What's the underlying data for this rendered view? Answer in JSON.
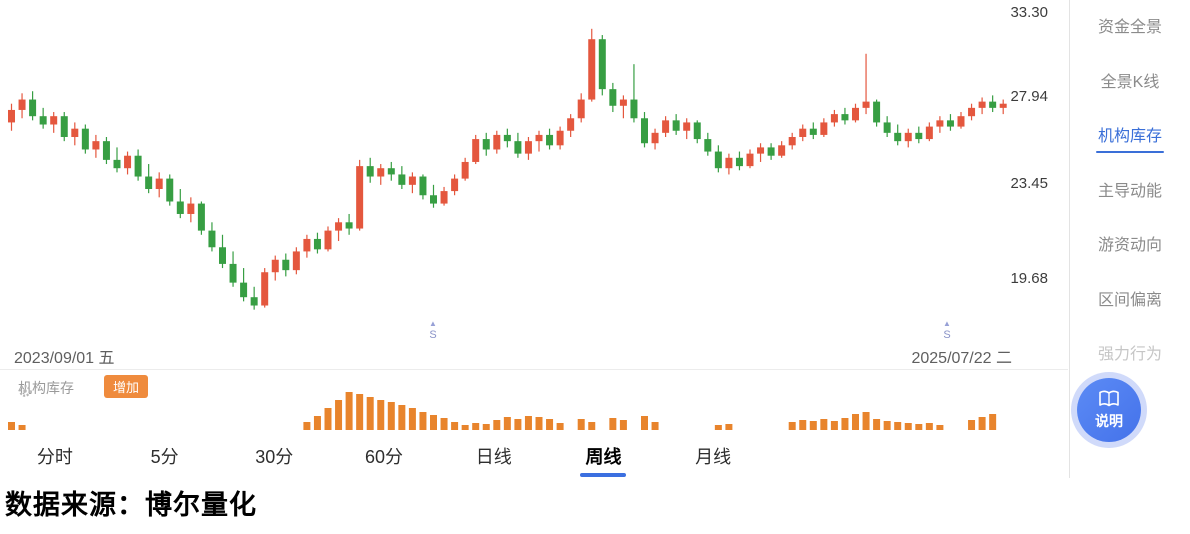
{
  "chart": {
    "y_axis_labels": [
      "33.30",
      "27.94",
      "23.45",
      "19.68"
    ],
    "date_start": "2023/09/01 五",
    "date_end": "2025/07/22 二",
    "markers": [
      {
        "label": "S",
        "x": 433
      },
      {
        "label": "S",
        "x": 947
      }
    ],
    "colors": {
      "up": "#e4573e",
      "down": "#379e43",
      "volume": "#e8842c",
      "accent": "#3b6fe0",
      "active_menu": "#3a6fd8"
    }
  },
  "chart_data": {
    "type": "candlestick",
    "timeframe": "周线",
    "y_range": [
      18.5,
      33.4
    ],
    "ohlc_note": "weekly candles [open,high,low,close]",
    "candles": [
      [
        27.9,
        28.8,
        27.5,
        28.5
      ],
      [
        28.5,
        29.3,
        28.1,
        29.0
      ],
      [
        29.0,
        29.4,
        28.0,
        28.2
      ],
      [
        28.2,
        28.6,
        27.6,
        27.8
      ],
      [
        27.8,
        28.4,
        27.4,
        28.2
      ],
      [
        28.2,
        28.4,
        27.0,
        27.2
      ],
      [
        27.2,
        27.9,
        26.8,
        27.6
      ],
      [
        27.6,
        27.8,
        26.4,
        26.6
      ],
      [
        26.6,
        27.3,
        26.2,
        27.0
      ],
      [
        27.0,
        27.2,
        25.9,
        26.1
      ],
      [
        26.1,
        26.7,
        25.5,
        25.7
      ],
      [
        25.7,
        26.5,
        25.4,
        26.3
      ],
      [
        26.3,
        26.6,
        25.1,
        25.3
      ],
      [
        25.3,
        25.9,
        24.5,
        24.7
      ],
      [
        24.7,
        25.5,
        24.3,
        25.2
      ],
      [
        25.2,
        25.4,
        23.9,
        24.1
      ],
      [
        24.1,
        24.7,
        23.3,
        23.5
      ],
      [
        23.5,
        24.3,
        23.1,
        24.0
      ],
      [
        24.0,
        24.1,
        22.5,
        22.7
      ],
      [
        22.7,
        23.1,
        21.7,
        21.9
      ],
      [
        21.9,
        22.5,
        20.9,
        21.1
      ],
      [
        21.1,
        21.7,
        20.0,
        20.2
      ],
      [
        20.2,
        20.9,
        19.3,
        19.5
      ],
      [
        19.5,
        20.0,
        18.9,
        19.1
      ],
      [
        19.1,
        20.9,
        19.0,
        20.7
      ],
      [
        20.7,
        21.5,
        20.3,
        21.3
      ],
      [
        21.3,
        21.6,
        20.5,
        20.8
      ],
      [
        20.8,
        21.9,
        20.6,
        21.7
      ],
      [
        21.7,
        22.5,
        21.4,
        22.3
      ],
      [
        22.3,
        22.6,
        21.6,
        21.8
      ],
      [
        21.8,
        22.9,
        21.7,
        22.7
      ],
      [
        22.7,
        23.3,
        22.2,
        23.1
      ],
      [
        23.1,
        23.5,
        22.5,
        22.8
      ],
      [
        22.8,
        26.1,
        22.7,
        25.8
      ],
      [
        25.8,
        26.2,
        25.0,
        25.3
      ],
      [
        25.3,
        25.9,
        24.9,
        25.7
      ],
      [
        25.7,
        26.0,
        25.1,
        25.4
      ],
      [
        25.4,
        25.8,
        24.7,
        24.9
      ],
      [
        24.9,
        25.5,
        24.5,
        25.3
      ],
      [
        25.3,
        25.4,
        24.2,
        24.4
      ],
      [
        24.4,
        24.9,
        23.8,
        24.0
      ],
      [
        24.0,
        24.8,
        23.9,
        24.6
      ],
      [
        24.6,
        25.4,
        24.4,
        25.2
      ],
      [
        25.2,
        26.2,
        25.1,
        26.0
      ],
      [
        26.0,
        27.3,
        25.9,
        27.1
      ],
      [
        27.1,
        27.4,
        26.3,
        26.6
      ],
      [
        26.6,
        27.5,
        26.4,
        27.3
      ],
      [
        27.3,
        27.6,
        26.7,
        27.0
      ],
      [
        27.0,
        27.4,
        26.2,
        26.4
      ],
      [
        26.4,
        27.2,
        26.1,
        27.0
      ],
      [
        27.0,
        27.5,
        26.5,
        27.3
      ],
      [
        27.3,
        27.6,
        26.6,
        26.8
      ],
      [
        26.8,
        27.7,
        26.6,
        27.5
      ],
      [
        27.5,
        28.3,
        27.2,
        28.1
      ],
      [
        28.1,
        29.3,
        27.9,
        29.0
      ],
      [
        29.0,
        32.4,
        28.9,
        31.9
      ],
      [
        31.9,
        32.1,
        29.2,
        29.5
      ],
      [
        29.5,
        29.8,
        28.4,
        28.7
      ],
      [
        28.7,
        29.2,
        28.1,
        29.0
      ],
      [
        29.0,
        30.7,
        27.9,
        28.1
      ],
      [
        28.1,
        28.4,
        26.7,
        26.9
      ],
      [
        26.9,
        27.6,
        26.6,
        27.4
      ],
      [
        27.4,
        28.2,
        27.2,
        28.0
      ],
      [
        28.0,
        28.3,
        27.3,
        27.5
      ],
      [
        27.5,
        28.1,
        27.1,
        27.9
      ],
      [
        27.9,
        28.0,
        26.9,
        27.1
      ],
      [
        27.1,
        27.4,
        26.3,
        26.5
      ],
      [
        26.5,
        26.8,
        25.5,
        25.7
      ],
      [
        25.7,
        26.4,
        25.4,
        26.2
      ],
      [
        26.2,
        26.5,
        25.6,
        25.8
      ],
      [
        25.8,
        26.6,
        25.7,
        26.4
      ],
      [
        26.4,
        26.9,
        26.0,
        26.7
      ],
      [
        26.7,
        26.9,
        26.1,
        26.3
      ],
      [
        26.3,
        27.0,
        26.2,
        26.8
      ],
      [
        26.8,
        27.4,
        26.6,
        27.2
      ],
      [
        27.2,
        27.8,
        27.0,
        27.6
      ],
      [
        27.6,
        27.9,
        27.1,
        27.3
      ],
      [
        27.3,
        28.1,
        27.2,
        27.9
      ],
      [
        27.9,
        28.5,
        27.7,
        28.3
      ],
      [
        28.3,
        28.6,
        27.8,
        28.0
      ],
      [
        28.0,
        28.8,
        27.9,
        28.6
      ],
      [
        28.6,
        31.2,
        28.3,
        28.9
      ],
      [
        28.9,
        29.0,
        27.7,
        27.9
      ],
      [
        27.9,
        28.2,
        27.2,
        27.4
      ],
      [
        27.4,
        27.8,
        26.8,
        27.0
      ],
      [
        27.0,
        27.6,
        26.7,
        27.4
      ],
      [
        27.4,
        27.7,
        26.9,
        27.1
      ],
      [
        27.1,
        27.9,
        27.0,
        27.7
      ],
      [
        27.7,
        28.2,
        27.4,
        28.0
      ],
      [
        28.0,
        28.3,
        27.5,
        27.7
      ],
      [
        27.7,
        28.4,
        27.6,
        28.2
      ],
      [
        28.2,
        28.8,
        28.0,
        28.6
      ],
      [
        28.6,
        29.1,
        28.3,
        28.9
      ],
      [
        28.9,
        29.2,
        28.4,
        28.6
      ],
      [
        28.6,
        29.0,
        28.3,
        28.8
      ]
    ],
    "volume_relative": [
      8,
      5,
      0,
      0,
      0,
      0,
      0,
      0,
      0,
      0,
      0,
      0,
      0,
      0,
      0,
      0,
      0,
      0,
      0,
      0,
      0,
      0,
      0,
      0,
      0,
      0,
      0,
      0,
      8,
      14,
      22,
      30,
      38,
      36,
      33,
      30,
      28,
      25,
      22,
      18,
      15,
      12,
      8,
      5,
      7,
      6,
      10,
      13,
      11,
      14,
      13,
      11,
      7,
      0,
      11,
      8,
      0,
      12,
      10,
      0,
      14,
      8,
      0,
      0,
      0,
      0,
      0,
      5,
      6,
      0,
      0,
      0,
      0,
      0,
      8,
      10,
      9,
      11,
      9,
      12,
      16,
      18,
      11,
      9,
      8,
      7,
      6,
      7,
      5,
      0,
      0,
      10,
      13,
      16,
      0
    ]
  },
  "indicator": {
    "label": "机构库存",
    "badge": "增加"
  },
  "tabs": [
    "分时",
    "5分",
    "30分",
    "60分",
    "日线",
    "周线",
    "月线"
  ],
  "active_tab": "周线",
  "sidebar": {
    "items": [
      {
        "label": "资金全景",
        "state": "normal"
      },
      {
        "label": "全景K线",
        "state": "normal"
      },
      {
        "label": "机构库存",
        "state": "active"
      },
      {
        "label": "主导动能",
        "state": "normal"
      },
      {
        "label": "游资动向",
        "state": "normal"
      },
      {
        "label": "区间偏离",
        "state": "normal"
      },
      {
        "label": "强力行为",
        "state": "muted"
      }
    ]
  },
  "floating_button": {
    "label": "说明"
  },
  "footer": {
    "source": "数据来源：博尔量化"
  }
}
